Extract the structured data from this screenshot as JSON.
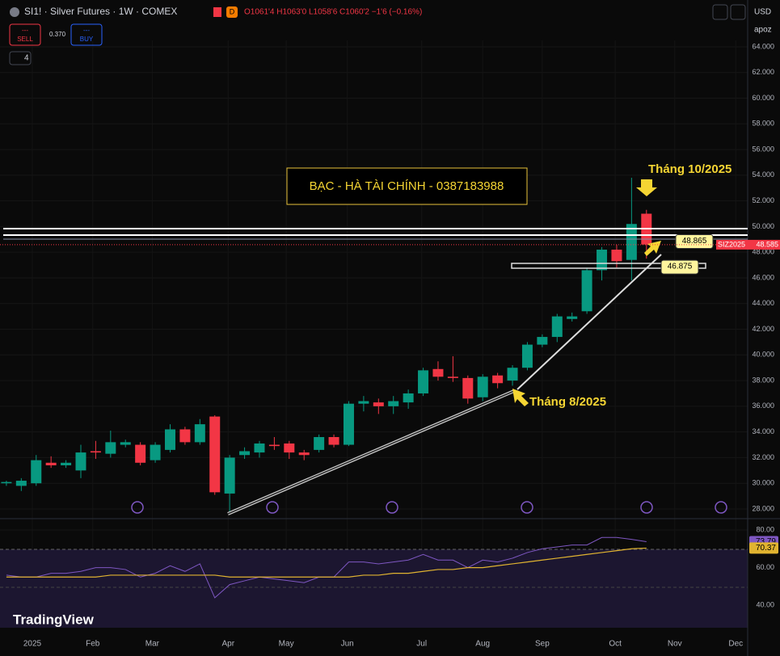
{
  "ui": {
    "symbol": "SI1! · Silver Futures · 1W · COMEX",
    "badge": "D",
    "ohlc": "O1061'4 H1063'0 L1058'6 C1060'2 −1'6 (−0.16%)",
    "sell_price": "---",
    "sell": "SELL",
    "spread": "0.370",
    "buy_price": "---",
    "buy": "BUY",
    "indicators": "4",
    "currency": "USD",
    "scale_mode": "apoz",
    "logo": "TradingView"
  },
  "chart_data": {
    "type": "candlestick",
    "title": "BẠC - HÀ TÀI CHÍNH - 0387183988",
    "annotations": [
      "Tháng 10/2025",
      "Tháng 8/2025"
    ],
    "x": [
      0,
      1,
      2,
      3,
      4,
      5,
      6,
      7,
      8,
      9,
      10,
      11,
      12,
      13,
      14,
      15,
      16,
      17,
      18,
      19,
      20,
      21,
      22,
      23,
      24,
      25,
      26,
      27,
      28,
      29,
      30,
      31,
      32,
      33,
      34,
      35,
      36,
      37,
      38,
      39,
      40,
      41,
      42,
      43
    ],
    "open": [
      30.0,
      29.8,
      30.0,
      31.6,
      31.4,
      31.0,
      32.5,
      32.3,
      33.0,
      33.0,
      31.8,
      32.6,
      34.2,
      33.2,
      35.2,
      29.2,
      32.2,
      32.4,
      33.0,
      33.1,
      32.4,
      32.6,
      33.6,
      33.0,
      36.2,
      36.3,
      36.0,
      36.3,
      37.0,
      38.9,
      38.3,
      38.2,
      36.7,
      38.4,
      38.0,
      39.0,
      40.8,
      41.4,
      42.8,
      43.4,
      46.6,
      48.2,
      47.4,
      51.0
    ],
    "high": [
      30.2,
      30.4,
      32.2,
      32.1,
      31.8,
      33.0,
      33.3,
      34.1,
      33.4,
      33.2,
      33.2,
      34.6,
      34.4,
      35.0,
      35.3,
      32.2,
      32.8,
      33.3,
      33.6,
      33.3,
      32.6,
      33.8,
      33.8,
      36.4,
      36.8,
      36.6,
      36.8,
      37.3,
      39.0,
      39.5,
      39.9,
      38.4,
      38.5,
      38.6,
      39.2,
      41.0,
      41.6,
      43.2,
      43.3,
      46.8,
      48.4,
      48.6,
      53.8,
      51.3
    ],
    "low": [
      29.8,
      29.4,
      29.8,
      31.2,
      31.2,
      30.4,
      31.9,
      32.0,
      32.8,
      31.4,
      31.6,
      32.4,
      33.0,
      33.0,
      29.1,
      27.8,
      31.9,
      32.0,
      32.6,
      31.9,
      31.8,
      32.4,
      32.8,
      32.9,
      35.6,
      35.4,
      35.4,
      35.8,
      36.8,
      38.0,
      37.9,
      36.2,
      36.4,
      37.4,
      37.6,
      38.8,
      40.6,
      41.0,
      42.6,
      43.2,
      45.8,
      46.8,
      45.8,
      47.5
    ],
    "close": [
      30.1,
      30.2,
      31.8,
      31.4,
      31.6,
      32.4,
      32.4,
      33.2,
      33.2,
      31.6,
      33.0,
      34.2,
      33.2,
      34.6,
      29.3,
      32.0,
      32.5,
      33.1,
      32.9,
      32.4,
      32.2,
      33.6,
      33.0,
      36.2,
      36.4,
      36.0,
      36.4,
      37.0,
      38.8,
      38.3,
      38.2,
      36.6,
      38.3,
      37.8,
      39.0,
      40.8,
      41.4,
      43.0,
      43.0,
      46.6,
      48.2,
      47.3,
      50.2,
      48.6
    ],
    "up_color": "#089981",
    "down_color": "#f23645",
    "xlim": [
      -0.43,
      49.8
    ],
    "xticks": [
      {
        "value": 1.74,
        "label": "2025"
      },
      {
        "value": 5.8,
        "label": "Feb"
      },
      {
        "value": 9.8,
        "label": "Mar"
      },
      {
        "value": 14.9,
        "label": "Apr"
      },
      {
        "value": 18.8,
        "label": "May"
      },
      {
        "value": 22.9,
        "label": "Jun"
      },
      {
        "value": 27.9,
        "label": "Jul"
      },
      {
        "value": 32,
        "label": "Aug"
      },
      {
        "value": 36,
        "label": "Sep"
      },
      {
        "value": 40.9,
        "label": "Oct"
      },
      {
        "value": 44.9,
        "label": "Nov"
      },
      {
        "value": 49,
        "label": "Dec"
      }
    ],
    "ylim": [
      27.37,
      64.5
    ],
    "yticks": [
      {
        "value": 28,
        "label": "28.000"
      },
      {
        "value": 30,
        "label": "30.000"
      },
      {
        "value": 32,
        "label": "32.000"
      },
      {
        "value": 34,
        "label": "34.000"
      },
      {
        "value": 36,
        "label": "36.000"
      },
      {
        "value": 38,
        "label": "38.000"
      },
      {
        "value": 40,
        "label": "40.000"
      },
      {
        "value": 42,
        "label": "42.000"
      },
      {
        "value": 44,
        "label": "44.000"
      },
      {
        "value": 46,
        "label": "46.000"
      },
      {
        "value": 48,
        "label": "48.000"
      },
      {
        "value": 50,
        "label": "50.000"
      },
      {
        "value": 52,
        "label": "52.000"
      },
      {
        "value": 54,
        "label": "54.000"
      },
      {
        "value": 56,
        "label": "56.000"
      },
      {
        "value": 58,
        "label": "58.000"
      },
      {
        "value": 60,
        "label": "60.000"
      },
      {
        "value": 62,
        "label": "62.000"
      },
      {
        "value": 64,
        "label": "64.000"
      }
    ],
    "price_marks": [
      48.865,
      46.875
    ],
    "last_price": {
      "name": "SIZ2025",
      "value": 48.585
    },
    "rsi": {
      "ylim": [
        28.1,
        84.7
      ],
      "yticks": [
        {
          "value": 40,
          "label": "40.00"
        },
        {
          "value": 60,
          "label": "60.00"
        },
        {
          "value": 80,
          "label": "80.00"
        }
      ],
      "series": [
        {
          "color": "#7e57c2",
          "values": [
            56,
            55,
            55,
            57,
            57,
            58,
            60,
            60,
            59,
            55,
            57,
            61,
            58,
            62,
            44,
            51,
            53,
            55,
            54,
            53,
            52,
            55,
            55,
            63,
            63,
            62,
            63,
            64,
            67,
            64,
            64,
            60,
            64,
            63,
            65,
            68,
            70,
            71,
            72,
            72,
            76,
            76,
            75,
            73.79
          ]
        },
        {
          "color": "#e0b330",
          "values": [
            55,
            55,
            55,
            55,
            55,
            55,
            55,
            56,
            56,
            56,
            56,
            56,
            56,
            56,
            56,
            55,
            55,
            55,
            55,
            55,
            55,
            55,
            55,
            55,
            56,
            56,
            57,
            57,
            58,
            59,
            59,
            60,
            60,
            61,
            62,
            63,
            64,
            65,
            66,
            67,
            68,
            69,
            70,
            70.37
          ]
        }
      ]
    }
  }
}
